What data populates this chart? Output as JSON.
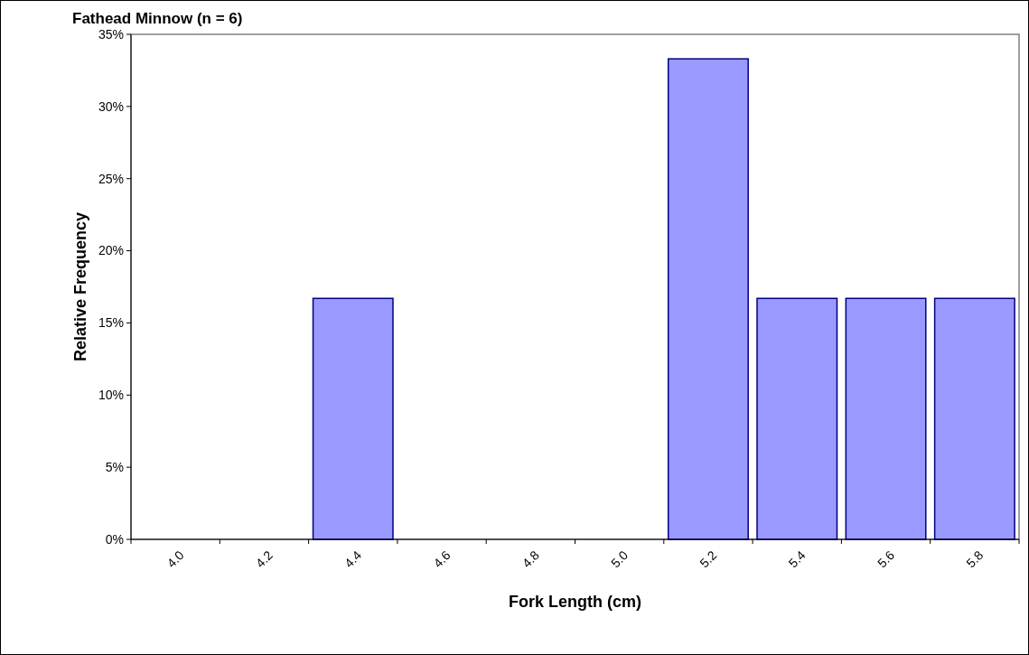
{
  "chart_data": {
    "type": "bar",
    "title": "Fathead Minnow (n = 6)",
    "xlabel": "Fork Length (cm)",
    "ylabel": "Relative Frequency",
    "categories": [
      "4.0",
      "4.2",
      "4.4",
      "4.6",
      "4.8",
      "5.0",
      "5.2",
      "5.4",
      "5.6",
      "5.8"
    ],
    "values": [
      0,
      0,
      16.7,
      0,
      0,
      0,
      33.3,
      16.7,
      16.7,
      16.7
    ],
    "color": "#9999ff",
    "ylim": [
      0,
      35
    ],
    "yticks": [
      {
        "value": 0,
        "label": "0%"
      },
      {
        "value": 5,
        "label": "5%"
      },
      {
        "value": 10,
        "label": "10%"
      },
      {
        "value": 15,
        "label": "15%"
      },
      {
        "value": 20,
        "label": "20%"
      },
      {
        "value": 25,
        "label": "25%"
      },
      {
        "value": 30,
        "label": "30%"
      },
      {
        "value": 35,
        "label": "35%"
      }
    ],
    "grid": false
  }
}
